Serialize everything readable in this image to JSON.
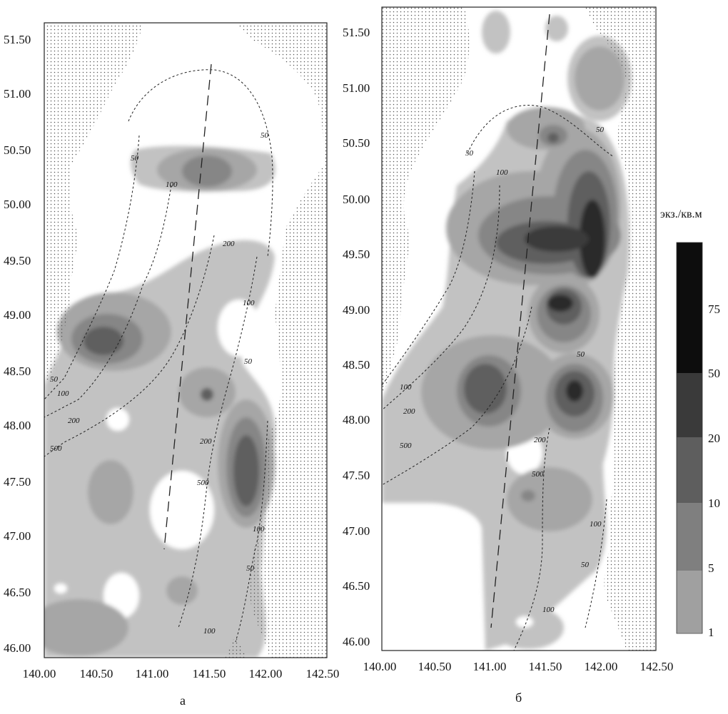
{
  "figure": {
    "panels": [
      {
        "id": "a",
        "label": "а",
        "x_ticks": [
          "140.00",
          "140.50",
          "141.00",
          "141.50",
          "142.00",
          "142.50"
        ],
        "y_ticks": [
          "51.50",
          "51.00",
          "50.50",
          "50.00",
          "49.50",
          "49.00",
          "48.50",
          "48.00",
          "47.50",
          "47.00",
          "46.50",
          "46.00"
        ],
        "isobath_labels": [
          "50",
          "100",
          "50",
          "200",
          "100",
          "50",
          "50",
          "100",
          "200",
          "500",
          "200",
          "500",
          "100",
          "50",
          "100"
        ]
      },
      {
        "id": "b",
        "label": "б",
        "x_ticks": [
          "140.00",
          "140.50",
          "141.00",
          "141.50",
          "142.00",
          "142.50"
        ],
        "y_ticks": [
          "51.50",
          "51.00",
          "50.50",
          "50.00",
          "49.50",
          "49.00",
          "48.50",
          "48.00",
          "47.50",
          "47.00",
          "46.50",
          "46.00"
        ],
        "isobath_labels": [
          "50",
          "100",
          "50",
          "50",
          "100",
          "200",
          "500",
          "200",
          "500",
          "100",
          "50",
          "100"
        ]
      }
    ],
    "legend": {
      "title": "экз./кв.м",
      "classes": [
        "75",
        "50",
        "20",
        "10",
        "5",
        "1"
      ],
      "colors": [
        "#0d0d0d",
        "#3a3a3a",
        "#5e5e5e",
        "#7f7f7f",
        "#a0a0a0",
        "#bdbdbd"
      ]
    },
    "colors": {
      "land": "#ffffff",
      "land_dots": "#444444",
      "sea": "#ffffff"
    }
  }
}
